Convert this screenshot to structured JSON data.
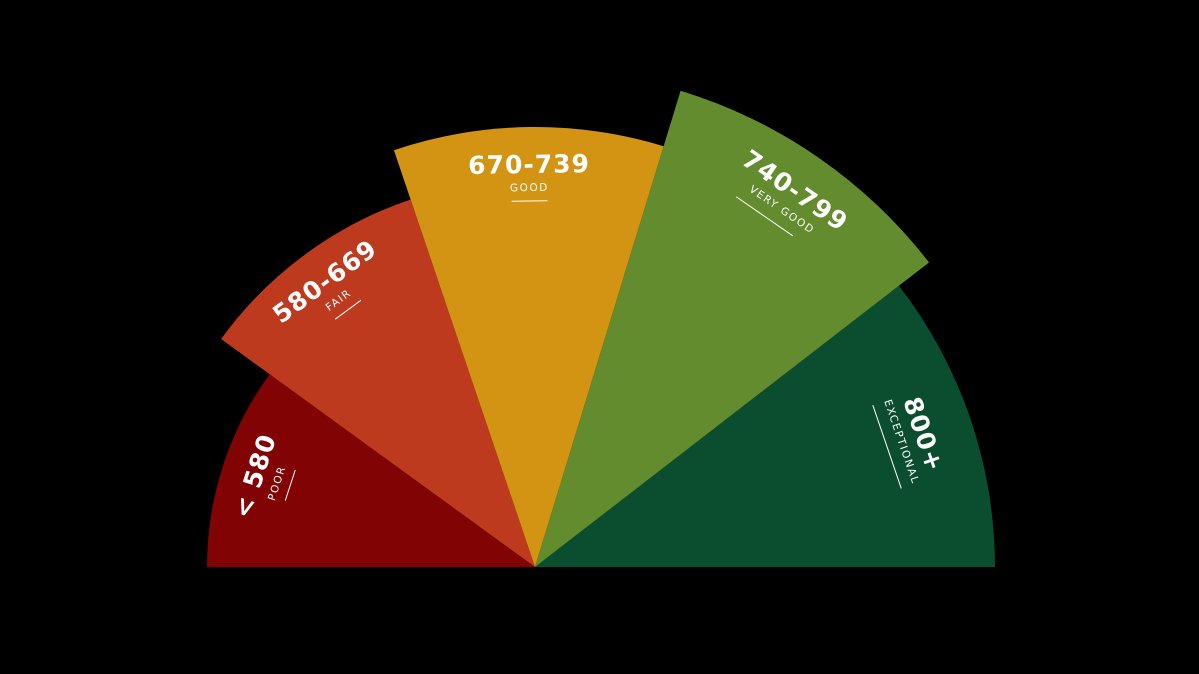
{
  "segments": [
    {
      "range": "< 580",
      "label": "POOR",
      "color": "#820303"
    },
    {
      "range": "580-669",
      "label": "FAIR",
      "color": "#bd3a1e"
    },
    {
      "range": "670-739",
      "label": "GOOD",
      "color": "#d39313"
    },
    {
      "range": "740-799",
      "label": "VERY GOOD",
      "color": "#628c2e"
    },
    {
      "range": "800+",
      "label": "EXCEPTIONAL",
      "color": "#0b4d2f"
    }
  ],
  "background": "#000000"
}
